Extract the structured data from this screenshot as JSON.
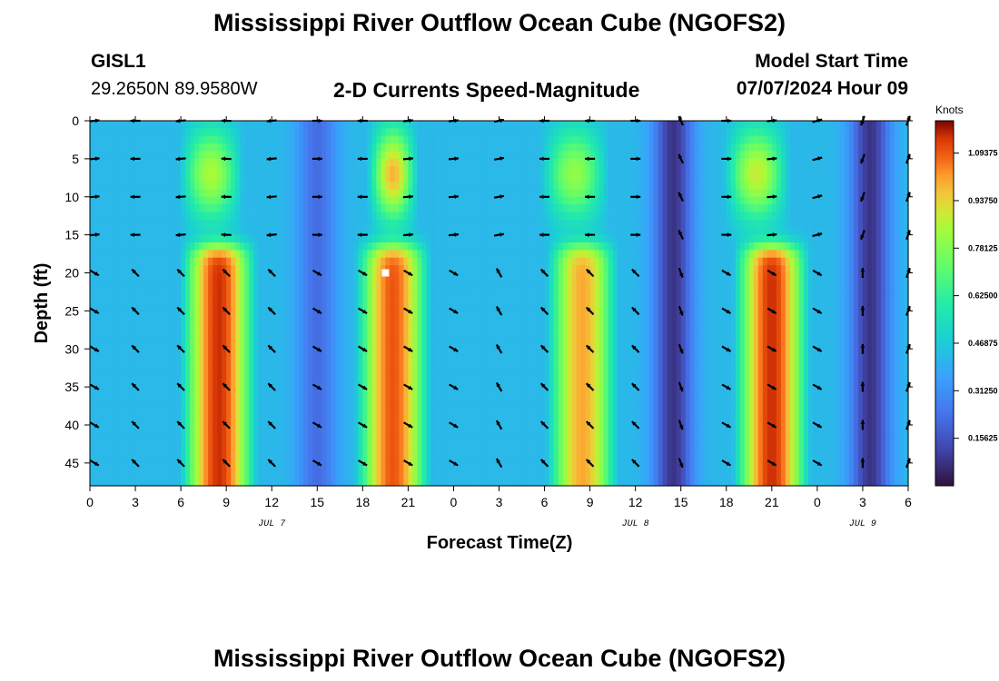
{
  "header": {
    "title": "Mississippi River Outflow Ocean Cube (NGOFS2)",
    "station_id": "GISL1",
    "coordinates": "29.2650N  89.9580W",
    "plot_title": "2-D Currents Speed-Magnitude",
    "model_start_label": "Model Start Time",
    "model_start_value": "07/07/2024 Hour 09"
  },
  "footer": {
    "title": "Mississippi River Outflow Ocean Cube (NGOFS2)"
  },
  "chart_data": {
    "type": "heatmap",
    "title": "2-D Currents Speed-Magnitude",
    "xlabel": "Forecast Time(Z)",
    "ylabel": "Depth (ft)",
    "x_hours": [
      0,
      3,
      6,
      9,
      12,
      15,
      18,
      21,
      24,
      27,
      30,
      33,
      36,
      39,
      42,
      45,
      48,
      51,
      54
    ],
    "x_tick_labels": [
      "0",
      "3",
      "6",
      "9",
      "12",
      "15",
      "18",
      "21",
      "0",
      "3",
      "6",
      "9",
      "12",
      "15",
      "18",
      "21",
      "0",
      "3",
      "6"
    ],
    "xlim": [
      0,
      54
    ],
    "date_labels": [
      {
        "hour": 12,
        "label": "JUL 7"
      },
      {
        "hour": 36,
        "label": "JUL 8"
      },
      {
        "hour": 51,
        "label": "JUL 9"
      }
    ],
    "y_ticks": [
      0,
      5,
      10,
      15,
      20,
      25,
      30,
      35,
      40,
      45
    ],
    "ylim": [
      0,
      48
    ],
    "y_inverted": true,
    "colorbar": {
      "title": "Knots",
      "ticks": [
        "0.15625",
        "0.31250",
        "0.46875",
        "0.62500",
        "0.78125",
        "0.93750",
        "1.09375"
      ],
      "min": 0,
      "max": 1.2
    },
    "speed_model": {
      "upper_depth_range_ft": [
        0,
        16
      ],
      "lower_depth_range_ft": [
        17,
        48
      ],
      "upper_peaks": [
        {
          "hour": 8,
          "width": 2.2,
          "speed": 0.68
        },
        {
          "hour": 20,
          "width": 1.6,
          "speed": 0.82
        },
        {
          "hour": 32,
          "width": 2.4,
          "speed": 0.64
        },
        {
          "hour": 44,
          "width": 2.2,
          "speed": 0.72
        }
      ],
      "lower_peaks": [
        {
          "hour": 8.5,
          "width": 2.6,
          "speed": 1.15
        },
        {
          "hour": 20,
          "width": 2.6,
          "speed": 1.1
        },
        {
          "hour": 32.5,
          "width": 2.6,
          "speed": 1.0
        },
        {
          "hour": 45,
          "width": 2.6,
          "speed": 1.15
        }
      ],
      "lows": [
        {
          "hour": 15,
          "speed": 0.22
        },
        {
          "hour": 38.5,
          "speed": 0.08
        },
        {
          "hour": 51.5,
          "speed": 0.08
        }
      ],
      "background_speed": 0.42
    },
    "vectors": {
      "hours": [
        0.3,
        3,
        6,
        9,
        12,
        15,
        18,
        21,
        24,
        27,
        30,
        33,
        36,
        39,
        42,
        45,
        48,
        51,
        54
      ],
      "depths": [
        0,
        5,
        10,
        15,
        20,
        25,
        30,
        35,
        40,
        45
      ],
      "upper_direction_deg": [
        5,
        180,
        185,
        178,
        185,
        0,
        180,
        5,
        5,
        10,
        180,
        180,
        0,
        115,
        0,
        5,
        15,
        250,
        70
      ],
      "lower_direction_deg": [
        -30,
        135,
        135,
        135,
        135,
        -30,
        -30,
        -30,
        -30,
        120,
        135,
        135,
        135,
        -70,
        -30,
        -30,
        -30,
        90,
        70
      ]
    },
    "marker": {
      "hour": 19.5,
      "depth_ft": 20
    }
  }
}
